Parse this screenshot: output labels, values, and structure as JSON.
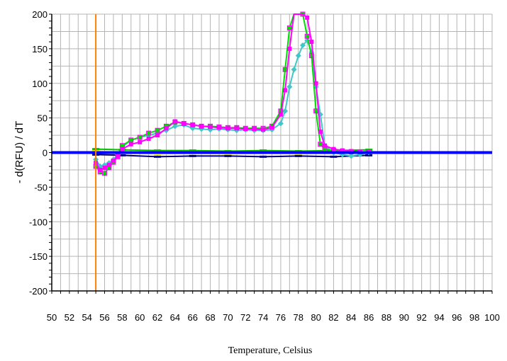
{
  "chart_data": {
    "type": "line",
    "title": "",
    "xlabel": "Temperature, Celsius",
    "ylabel": "- d(RFU) / dT",
    "xlim": [
      50,
      100
    ],
    "ylim": [
      -200,
      200
    ],
    "x_ticks": [
      50,
      52,
      54,
      56,
      58,
      60,
      62,
      64,
      66,
      68,
      70,
      72,
      74,
      76,
      78,
      80,
      82,
      84,
      86,
      88,
      90,
      92,
      94,
      96,
      98,
      100
    ],
    "y_ticks": [
      -200,
      -150,
      -100,
      -50,
      0,
      50,
      100,
      150,
      200
    ],
    "grid": true,
    "legend": "none",
    "threshold": {
      "y": 0,
      "color": "#0000ff"
    },
    "marker_line": {
      "x": 55,
      "color": "#ff8000"
    },
    "series": [
      {
        "color": "#ff00ff",
        "x": [
          55,
          55.5,
          56,
          56.5,
          57,
          57.5,
          58,
          59,
          60,
          61,
          62,
          63,
          64,
          65,
          66,
          67,
          68,
          69,
          70,
          71,
          72,
          73,
          74,
          75,
          76,
          76.5,
          77,
          77.5,
          78,
          78.5,
          79,
          79.5,
          80,
          80.5,
          81,
          82,
          83,
          84,
          85,
          86
        ],
        "y": [
          -15,
          -25,
          -22,
          -18,
          -12,
          -5,
          5,
          12,
          15,
          20,
          25,
          35,
          45,
          42,
          40,
          38,
          37,
          36,
          35,
          35,
          34,
          34,
          33,
          36,
          55,
          90,
          150,
          205,
          215,
          210,
          195,
          160,
          100,
          30,
          10,
          5,
          3,
          2,
          1,
          1
        ]
      },
      {
        "color": "#40c8c8",
        "x": [
          55,
          55.5,
          56,
          56.5,
          57,
          57.5,
          58,
          59,
          60,
          61,
          62,
          63,
          64,
          65,
          66,
          67,
          68,
          69,
          70,
          71,
          72,
          73,
          74,
          75,
          76,
          76.5,
          77,
          77.5,
          78,
          78.5,
          79,
          79.5,
          80,
          80.5,
          81,
          82,
          83,
          84,
          85,
          86
        ],
        "y": [
          -10,
          -20,
          -18,
          -15,
          -10,
          -3,
          8,
          18,
          22,
          25,
          28,
          32,
          38,
          40,
          35,
          34,
          33,
          34,
          33,
          32,
          33,
          32,
          32,
          33,
          42,
          60,
          95,
          120,
          140,
          155,
          162,
          145,
          95,
          55,
          10,
          0,
          -3,
          -5,
          -3,
          0
        ]
      },
      {
        "color": "#00e000",
        "x": [
          55,
          55.5,
          56,
          56.5,
          57,
          57.5,
          58,
          59,
          60,
          61,
          62,
          63,
          64,
          65,
          66,
          67,
          68,
          69,
          70,
          71,
          72,
          73,
          74,
          75,
          76,
          76.5,
          77,
          77.5,
          78,
          78.5,
          79,
          79.5,
          80,
          80.5,
          81,
          82,
          83,
          84,
          85,
          86
        ],
        "y": [
          -20,
          -28,
          -30,
          -22,
          -14,
          -6,
          10,
          18,
          22,
          28,
          32,
          38,
          44,
          42,
          40,
          38,
          38,
          37,
          36,
          36,
          35,
          35,
          35,
          38,
          60,
          120,
          180,
          215,
          212,
          200,
          168,
          140,
          60,
          12,
          5,
          3,
          2,
          1,
          1,
          1
        ]
      },
      {
        "color": "#ffff00",
        "x": [
          55,
          58,
          62,
          66,
          70,
          74,
          78,
          82,
          86
        ],
        "y": [
          2,
          0,
          -2,
          -1,
          -2,
          -1,
          -2,
          0,
          1
        ]
      },
      {
        "color": "#00c000",
        "x": [
          55,
          58,
          62,
          66,
          70,
          74,
          78,
          82,
          86
        ],
        "y": [
          5,
          4,
          3,
          3,
          2,
          3,
          2,
          3,
          4
        ]
      },
      {
        "color": "#000080",
        "x": [
          55,
          58,
          62,
          66,
          70,
          74,
          78,
          82,
          86
        ],
        "y": [
          -3,
          -4,
          -6,
          -5,
          -5,
          -6,
          -5,
          -6,
          -4
        ]
      }
    ]
  }
}
